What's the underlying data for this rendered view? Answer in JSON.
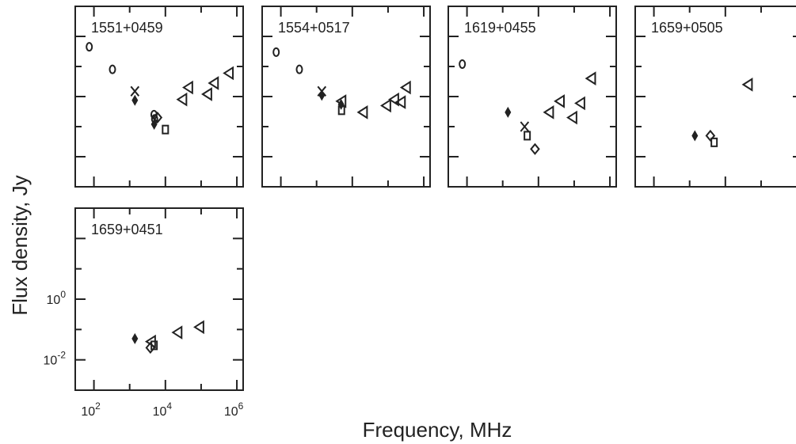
{
  "figure": {
    "ylabel": "Flux density, Jy",
    "xlabel": "Frequency, MHz"
  },
  "chart_data": [
    {
      "type": "scatter",
      "title": "1551+0459",
      "x_scale": "log",
      "y_scale": "log",
      "xlim": [
        30,
        1500000
      ],
      "ylim": [
        0.001,
        1000
      ],
      "xticks": [
        100,
        10000,
        1000000
      ],
      "yticks": [
        0.01,
        1
      ],
      "series": [
        {
          "marker": "circle",
          "points": [
            [
              74,
              45
            ],
            [
              330,
              8
            ],
            [
              5000,
              0.18
            ],
            [
              4800,
              0.25
            ]
          ]
        },
        {
          "marker": "x",
          "points": [
            [
              1400,
              1.5
            ]
          ]
        },
        {
          "marker": "filled-diamond",
          "points": [
            [
              1400,
              0.75
            ],
            [
              4850,
              0.12
            ]
          ]
        },
        {
          "marker": "diamond",
          "points": [
            [
              6000,
              0.2
            ]
          ]
        },
        {
          "marker": "square",
          "points": [
            [
              10000,
              0.08
            ]
          ]
        },
        {
          "marker": "triangle-left",
          "points": [
            [
              30000,
              0.8
            ],
            [
              44000,
              2
            ],
            [
              150000,
              1.2
            ],
            [
              230000,
              2.8
            ],
            [
              600000,
              6
            ]
          ]
        }
      ]
    },
    {
      "type": "scatter",
      "title": "1554+0517",
      "x_scale": "log",
      "y_scale": "log",
      "xlim": [
        30,
        1500000
      ],
      "ylim": [
        0.001,
        1000
      ],
      "series": [
        {
          "marker": "circle",
          "points": [
            [
              74,
              30
            ],
            [
              330,
              8
            ]
          ]
        },
        {
          "marker": "x",
          "points": [
            [
              1400,
              1.5
            ]
          ]
        },
        {
          "marker": "filled-diamond",
          "points": [
            [
              1400,
              1.1
            ],
            [
              4850,
              0.55
            ]
          ]
        },
        {
          "marker": "square",
          "points": [
            [
              5000,
              0.35
            ]
          ]
        },
        {
          "marker": "triangle-left",
          "points": [
            [
              5000,
              0.7
            ],
            [
              20000,
              0.3
            ],
            [
              90000,
              0.5
            ],
            [
              150000,
              0.8
            ],
            [
              230000,
              0.65
            ],
            [
              320000,
              2
            ]
          ]
        }
      ]
    },
    {
      "type": "scatter",
      "title": "1619+0455",
      "x_scale": "log",
      "y_scale": "log",
      "xlim": [
        30,
        1500000
      ],
      "ylim": [
        0.001,
        1000
      ],
      "series": [
        {
          "marker": "circle",
          "points": [
            [
              74,
              12
            ]
          ]
        },
        {
          "marker": "filled-diamond",
          "points": [
            [
              1400,
              0.3
            ]
          ]
        },
        {
          "marker": "x",
          "points": [
            [
              4100,
              0.1
            ]
          ]
        },
        {
          "marker": "square",
          "points": [
            [
              4850,
              0.05
            ]
          ]
        },
        {
          "marker": "diamond",
          "points": [
            [
              8000,
              0.018
            ]
          ]
        },
        {
          "marker": "triangle-left",
          "points": [
            [
              20000,
              0.3
            ],
            [
              40000,
              0.7
            ],
            [
              90000,
              0.2
            ],
            [
              150000,
              0.6
            ],
            [
              300000,
              4
            ]
          ]
        }
      ]
    },
    {
      "type": "scatter",
      "title": "1659+0505",
      "x_scale": "log",
      "y_scale": "log",
      "xlim": [
        30,
        1500000
      ],
      "ylim": [
        0.001,
        1000
      ],
      "series": [
        {
          "marker": "filled-diamond",
          "points": [
            [
              1400,
              0.05
            ]
          ]
        },
        {
          "marker": "diamond",
          "points": [
            [
              3800,
              0.05
            ]
          ]
        },
        {
          "marker": "square",
          "points": [
            [
              4850,
              0.03
            ]
          ]
        },
        {
          "marker": "triangle-left",
          "points": [
            [
              43000,
              2.5
            ]
          ]
        }
      ]
    },
    {
      "type": "scatter",
      "title": "1659+0451",
      "x_scale": "log",
      "y_scale": "log",
      "xlim": [
        30,
        1500000
      ],
      "ylim": [
        0.001,
        1000
      ],
      "xticks": [
        100,
        10000,
        1000000
      ],
      "yticks": [
        0.01,
        1
      ],
      "series": [
        {
          "marker": "filled-diamond",
          "points": [
            [
              1400,
              0.05
            ]
          ]
        },
        {
          "marker": "diamond",
          "points": [
            [
              3800,
              0.025
            ]
          ]
        },
        {
          "marker": "square",
          "points": [
            [
              4850,
              0.03
            ]
          ]
        },
        {
          "marker": "triangle-left",
          "points": [
            [
              4000,
              0.04
            ],
            [
              22000,
              0.08
            ],
            [
              90000,
              0.12
            ]
          ]
        }
      ]
    }
  ]
}
